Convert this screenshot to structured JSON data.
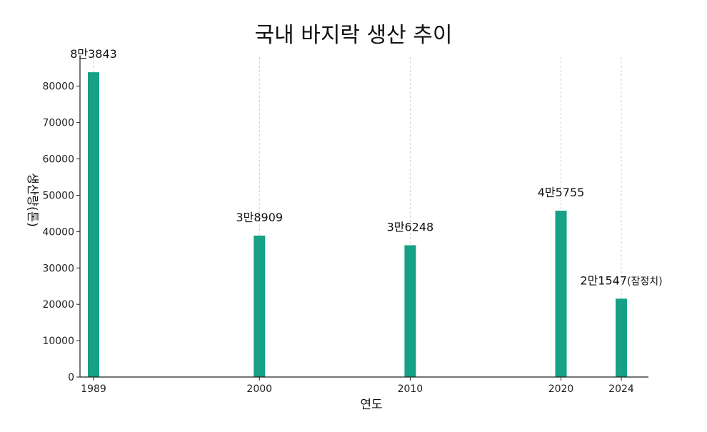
{
  "chart_data": {
    "type": "bar",
    "title": "국내 바지락 생산 추이",
    "xlabel": "연도",
    "ylabel": "생산량(톤)",
    "x": [
      1989,
      2000,
      2010,
      2020,
      2024
    ],
    "values": [
      83843,
      38909,
      36248,
      45755,
      21547
    ],
    "data_labels": [
      "8만3843",
      "3만8909",
      "3만6248",
      "4만5755",
      "2만1547(잠정치)"
    ],
    "y_ticks": [
      0,
      10000,
      20000,
      30000,
      40000,
      50000,
      60000,
      70000,
      80000
    ],
    "ylim": [
      0,
      88000
    ],
    "xlim": [
      1988.1,
      2025.8
    ],
    "grid": "x-dashed",
    "legend": "none",
    "bar_color": "#16a085",
    "axis_color": "#222222",
    "grid_color": "#cccccc"
  }
}
